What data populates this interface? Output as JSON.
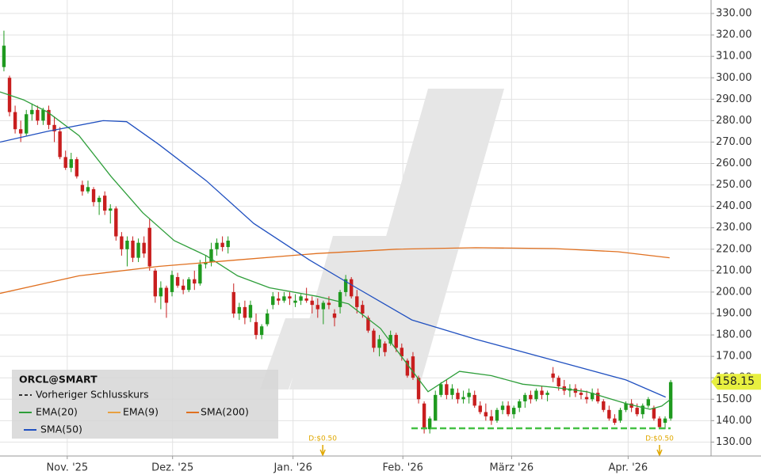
{
  "chart_data": {
    "type": "candlestick",
    "title": "ORCL@SMART",
    "legend_items": [
      "Vorheriger Schlusskurs",
      "EMA(20)",
      "EMA(9)",
      "SMA(200)",
      "SMA(50)"
    ],
    "up_color": "#1f9a1f",
    "down_color": "#c81e1e",
    "candles": [
      [
        305,
        322,
        303,
        315
      ],
      [
        300,
        301,
        282,
        284
      ],
      [
        284,
        287,
        274,
        276
      ],
      [
        276,
        280,
        270,
        274
      ],
      [
        274,
        285,
        273,
        283
      ],
      [
        283,
        288,
        280,
        285
      ],
      [
        285,
        287,
        278,
        280
      ],
      [
        280,
        286,
        278,
        285
      ],
      [
        285,
        287,
        276,
        278
      ],
      [
        278,
        282,
        270,
        275
      ],
      [
        275,
        277,
        262,
        263
      ],
      [
        263,
        266,
        257,
        258
      ],
      [
        258,
        265,
        256,
        262
      ],
      [
        262,
        263,
        253,
        254
      ],
      [
        250,
        252,
        245,
        247
      ],
      [
        247,
        252,
        246,
        249
      ],
      [
        248,
        249,
        240,
        242
      ],
      [
        242,
        245,
        236,
        244
      ],
      [
        245,
        247,
        236,
        238
      ],
      [
        238,
        241,
        232,
        239
      ],
      [
        239,
        240,
        224,
        226
      ],
      [
        226,
        228,
        217,
        220
      ],
      [
        220,
        226,
        212,
        224
      ],
      [
        224,
        226,
        214,
        216
      ],
      [
        216,
        225,
        214,
        223
      ],
      [
        223,
        226,
        216,
        218
      ],
      [
        230,
        234,
        210,
        212
      ],
      [
        210,
        211,
        195,
        198
      ],
      [
        198,
        205,
        192,
        202
      ],
      [
        202,
        203,
        188,
        195
      ],
      [
        200,
        210,
        198,
        208
      ],
      [
        207,
        209,
        202,
        203
      ],
      [
        203,
        206,
        199,
        201
      ],
      [
        201,
        207,
        200,
        206
      ],
      [
        206,
        210,
        201,
        204
      ],
      [
        204,
        215,
        203,
        213
      ],
      [
        213,
        217,
        211,
        214
      ],
      [
        214,
        223,
        212,
        220
      ],
      [
        220,
        225,
        217,
        223
      ],
      [
        223,
        226,
        219,
        221
      ],
      [
        221,
        226,
        218,
        224
      ],
      [
        200,
        204,
        188,
        190
      ],
      [
        190,
        195,
        187,
        193
      ],
      [
        193,
        196,
        185,
        188
      ],
      [
        188,
        196,
        186,
        194
      ],
      [
        186,
        190,
        178,
        180
      ],
      [
        180,
        185,
        178,
        184
      ],
      [
        185,
        192,
        184,
        190
      ],
      [
        194,
        200,
        192,
        198
      ],
      [
        197,
        200,
        194,
        196
      ],
      [
        196,
        200,
        195,
        198
      ],
      [
        198,
        200,
        194,
        197
      ],
      [
        195,
        199,
        193,
        196
      ],
      [
        196,
        199,
        194,
        198
      ],
      [
        197,
        202,
        195,
        196
      ],
      [
        196,
        198,
        190,
        194
      ],
      [
        194,
        197,
        188,
        192
      ],
      [
        192,
        196,
        185,
        195
      ],
      [
        195,
        198,
        192,
        194
      ],
      [
        190,
        192,
        184,
        188
      ],
      [
        193,
        201,
        190,
        200
      ],
      [
        200,
        208,
        198,
        206
      ],
      [
        206,
        207,
        197,
        198
      ],
      [
        198,
        201,
        190,
        193
      ],
      [
        194,
        196,
        188,
        190
      ],
      [
        188,
        189,
        181,
        182
      ],
      [
        182,
        183,
        172,
        174
      ],
      [
        174,
        180,
        170,
        178
      ],
      [
        176,
        177,
        170,
        172
      ],
      [
        176,
        182,
        175,
        180
      ],
      [
        180,
        181,
        172,
        174
      ],
      [
        174,
        176,
        168,
        170
      ],
      [
        168,
        169,
        160,
        161
      ],
      [
        170,
        172,
        159,
        160
      ],
      [
        160,
        161,
        148,
        150
      ],
      [
        148,
        149,
        134,
        136
      ],
      [
        136,
        142,
        134,
        141
      ],
      [
        140,
        154,
        140,
        152
      ],
      [
        152,
        158,
        151,
        157
      ],
      [
        157,
        159,
        150,
        152
      ],
      [
        152,
        157,
        150,
        155
      ],
      [
        153,
        155,
        148,
        150
      ],
      [
        150,
        154,
        148,
        151
      ],
      [
        151,
        155,
        148,
        153
      ],
      [
        152,
        154,
        146,
        147
      ],
      [
        147,
        149,
        143,
        144
      ],
      [
        144,
        148,
        140,
        142
      ],
      [
        142,
        145,
        138,
        140
      ],
      [
        140,
        146,
        139,
        145
      ],
      [
        145,
        149,
        143,
        147
      ],
      [
        147,
        149,
        142,
        143
      ],
      [
        143,
        147,
        141,
        146
      ],
      [
        146,
        150,
        144,
        149
      ],
      [
        149,
        153,
        146,
        152
      ],
      [
        152,
        154,
        148,
        150
      ],
      [
        150,
        155,
        149,
        154
      ],
      [
        154,
        156,
        150,
        152
      ],
      [
        152,
        154,
        149,
        153
      ],
      [
        162,
        165,
        158,
        160
      ],
      [
        160,
        161,
        154,
        156
      ],
      [
        156,
        159,
        152,
        154
      ],
      [
        154,
        157,
        151,
        155
      ],
      [
        155,
        157,
        151,
        153
      ],
      [
        153,
        155,
        150,
        152
      ],
      [
        151,
        154,
        148,
        150
      ],
      [
        150,
        155,
        149,
        153
      ],
      [
        153,
        155,
        148,
        149
      ],
      [
        149,
        150,
        144,
        145
      ],
      [
        145,
        147,
        140,
        141
      ],
      [
        141,
        143,
        138,
        139
      ],
      [
        140,
        146,
        139,
        145
      ],
      [
        145,
        149,
        144,
        148
      ],
      [
        148,
        150,
        144,
        146
      ],
      [
        146,
        148,
        142,
        143
      ],
      [
        143,
        148,
        141,
        147
      ],
      [
        147,
        151,
        146,
        150
      ],
      [
        146,
        147,
        140,
        141
      ],
      [
        141,
        142,
        136,
        137
      ],
      [
        139,
        142,
        136,
        141
      ],
      [
        141,
        159,
        140,
        158
      ]
    ],
    "series": [
      {
        "name": "EMA(20)",
        "color": "#2e9e3a",
        "x": [
          -0.7,
          3.5,
          7.8,
          13.4,
          19.1,
          24.8,
          30.4,
          36.1,
          41.7,
          47.4,
          55.9,
          61.5,
          67.2,
          71.4,
          75.7,
          81.3,
          87,
          92.6,
          98.3,
          104,
          111,
          115.3,
          117.4,
          119
        ],
        "values": [
          293.4,
          289.7,
          284,
          273,
          254,
          237,
          224,
          217,
          207.6,
          202,
          198,
          194.5,
          183,
          168.4,
          153.5,
          163,
          161,
          157,
          155.5,
          153.5,
          148,
          145.3,
          146.8,
          150
        ]
      },
      {
        "name": "SMA(200)",
        "color": "#e07020",
        "x": [
          -0.7,
          13.4,
          27.6,
          41.7,
          55.9,
          70,
          84.2,
          98.3,
          109.6,
          118.8
        ],
        "values": [
          199.4,
          207.6,
          212,
          215,
          218,
          220,
          220.7,
          220.3,
          218.8,
          216
        ]
      },
      {
        "name": "SMA(50)",
        "color": "#2050c0",
        "x": [
          -0.7,
          7.8,
          17.7,
          21.9,
          27.6,
          36.1,
          44.6,
          54.5,
          62.9,
          72.8,
          84.2,
          98.3,
          111,
          118.1
        ],
        "values": [
          270,
          275,
          280,
          279.5,
          269,
          252,
          232,
          215,
          202,
          187,
          178,
          168,
          159,
          151
        ]
      }
    ],
    "annotations": [
      {
        "x": 56.9,
        "label": "D:$0.50"
      },
      {
        "x": 117,
        "label": "D:$0.50"
      }
    ],
    "last_price": {
      "value": 158.15,
      "label": "158.15"
    },
    "xlim": [
      -0.7,
      126.2
    ],
    "xticks": [
      {
        "value": 11.3,
        "label": "Nov. '25"
      },
      {
        "value": 30.1,
        "label": "Dez. '25"
      },
      {
        "value": 51.6,
        "label": "Jan. '26"
      },
      {
        "value": 71.2,
        "label": "Feb. '26"
      },
      {
        "value": 90.6,
        "label": "März '26"
      },
      {
        "value": 111.4,
        "label": "Apr. '26"
      }
    ],
    "ylim": [
      123.5,
      336.3
    ],
    "yticks": [
      {
        "value": 130,
        "label": "130.00"
      },
      {
        "value": 140,
        "label": "140.00"
      },
      {
        "value": 150,
        "label": "150.00"
      },
      {
        "value": 160,
        "label": "160.00"
      },
      {
        "value": 170,
        "label": "170.00"
      },
      {
        "value": 180,
        "label": "180.00"
      },
      {
        "value": 190,
        "label": "190.00"
      },
      {
        "value": 200,
        "label": "200.00"
      },
      {
        "value": 210,
        "label": "210.00"
      },
      {
        "value": 220,
        "label": "220.00"
      },
      {
        "value": 230,
        "label": "230.00"
      },
      {
        "value": 240,
        "label": "240.00"
      },
      {
        "value": 250,
        "label": "250.00"
      },
      {
        "value": 260,
        "label": "260.00"
      },
      {
        "value": 270,
        "label": "270.00"
      },
      {
        "value": 280,
        "label": "280.00"
      },
      {
        "value": 290,
        "label": "290.00"
      },
      {
        "value": 300,
        "label": "300.00"
      },
      {
        "value": 310,
        "label": "310.00"
      },
      {
        "value": 320,
        "label": "320.00"
      },
      {
        "value": 330,
        "label": "330.00"
      }
    ],
    "grid": true
  }
}
